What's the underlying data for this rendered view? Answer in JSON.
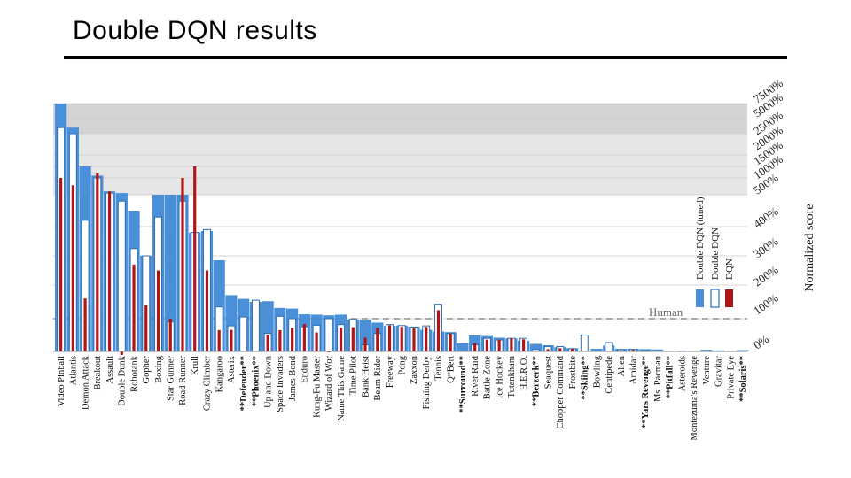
{
  "slide": {
    "title": "Double DQN results"
  },
  "chart_data": {
    "type": "bar",
    "ylabel": "Normalized score",
    "ytick_labels": [
      "0%",
      "100%",
      "200%",
      "300%",
      "400%",
      "500%",
      "1000%",
      "1500%",
      "2000%",
      "2500%",
      "5000%",
      "7500%"
    ],
    "reference_line": {
      "label": "Human",
      "value": 100
    },
    "legend": [
      "Double DQN (tuned)",
      "Double DQN",
      "DQN"
    ],
    "colors": {
      "tuned": "#4a90d9",
      "ddqn_fill": "#ffffff",
      "ddqn_stroke": "#2f6db5",
      "dqn": "#b01515",
      "band_dark": "#d3d3d3",
      "band_light": "#e6e6e6"
    },
    "categories": [
      "Video Pinball",
      "Atlantis",
      "Demon Attack",
      "Breakout",
      "Assault",
      "Double Dunk",
      "Robotank",
      "Gopher",
      "Boxing",
      "Star Gunner",
      "Road Runner",
      "Krull",
      "Crazy Climber",
      "Kangaroo",
      "Asterix",
      "**Defender**",
      "**Phoenix**",
      "Up and Down",
      "Space Invaders",
      "James Bond",
      "Enduro",
      "Kung-Fu Master",
      "Wizard of Wor",
      "Name This Game",
      "Time Pilot",
      "Bank Heist",
      "Beam Rider",
      "Freeway",
      "Pong",
      "Zaxxon",
      "Fishing Derby",
      "Tennis",
      "Q*Bert",
      "**Surround**",
      "River Raid",
      "Battle Zone",
      "Ice Hockey",
      "Tutankham",
      "H.E.R.O.",
      "**Berzerk**",
      "Seaquest",
      "Chopper Command",
      "Frostbite",
      "**Skiing**",
      "Bowling",
      "Centipede",
      "Alien",
      "Amidar",
      "**Yars Revenge**",
      "Ms. Pacman",
      "**Pitfall**",
      "Asteroids",
      "Montezuma's Revenge",
      "Venture",
      "Gravitar",
      "Private Eye",
      "**Solaris**"
    ],
    "series": [
      {
        "name": "Double DQN (tuned)",
        "values": [
          7500,
          3500,
          1500,
          1100,
          600,
          550,
          450,
          300,
          500,
          500,
          500,
          380,
          385,
          285,
          170,
          159,
          150,
          152,
          132,
          130,
          113,
          112,
          110,
          112,
          97,
          96,
          88,
          78,
          79,
          76,
          66,
          61,
          59,
          25,
          49,
          47,
          42,
          40,
          33,
          23,
          19,
          13,
          10,
          0,
          8,
          18,
          8,
          8,
          7,
          6,
          1,
          2,
          0,
          5,
          3,
          1,
          4
        ]
      },
      {
        "name": "Double DQN",
        "values": [
          3500,
          2500,
          420,
          1000,
          550,
          480,
          325,
          300,
          430,
          90,
          480,
          380,
          390,
          135,
          78,
          105,
          155,
          55,
          107,
          100,
          75,
          80,
          100,
          82,
          98,
          20,
          55,
          82,
          79,
          74,
          78,
          143,
          55,
          0,
          20,
          40,
          35,
          40,
          40,
          6,
          15,
          15,
          8,
          50,
          0,
          27,
          5,
          6,
          2,
          2,
          0,
          1,
          0,
          0,
          1,
          0,
          0
        ]
      },
      {
        "name": "DQN",
        "values": [
          1000,
          780,
          160,
          1200,
          600,
          -50,
          270,
          140,
          250,
          100,
          1000,
          1500,
          250,
          65,
          66,
          0,
          0,
          50,
          65,
          72,
          84,
          58,
          -10,
          72,
          74,
          42,
          72,
          80,
          75,
          70,
          75,
          125,
          54,
          0,
          25,
          36,
          36,
          40,
          37,
          0,
          7,
          10,
          8,
          0,
          0,
          0,
          0,
          5,
          0,
          0,
          0,
          0,
          0,
          0,
          0,
          0,
          0
        ]
      }
    ]
  }
}
